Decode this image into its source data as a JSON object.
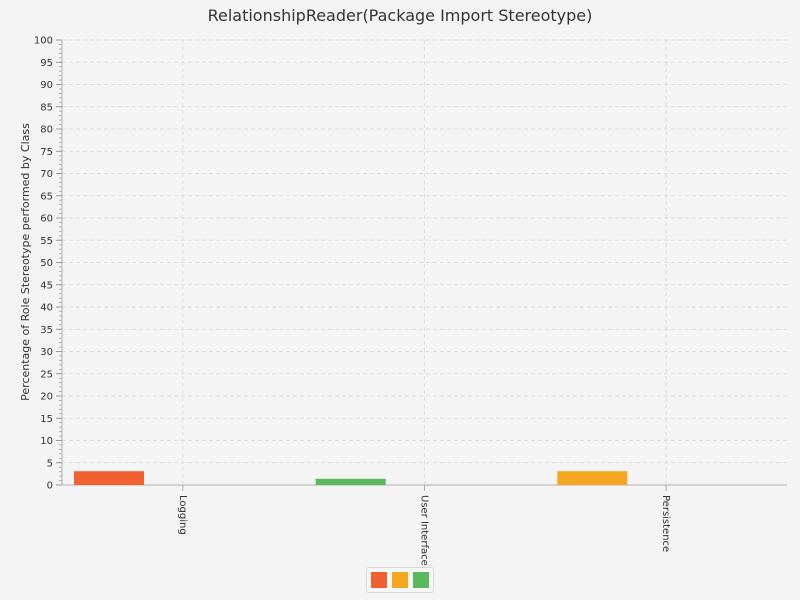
{
  "chart_data": {
    "type": "bar",
    "title": "RelationshipReader(Package Import Stereotype)",
    "xlabel": "",
    "ylabel": "Percentage of Role Stereotype performed by Class",
    "ylim": [
      0,
      100
    ],
    "y_ticks": [
      0,
      5,
      10,
      15,
      20,
      25,
      30,
      35,
      40,
      45,
      50,
      55,
      60,
      65,
      70,
      75,
      80,
      85,
      90,
      95,
      100
    ],
    "y_tick_labels": [
      "0",
      "5",
      "10",
      "15",
      "20",
      "25",
      "30",
      "35",
      "40",
      "45",
      "50",
      "55",
      "60",
      "65",
      "70",
      "75",
      "80",
      "85",
      "90",
      "95",
      "100"
    ],
    "categories": [
      "Logging",
      "User Interface",
      "Persistence"
    ],
    "values": [
      3.1,
      1.4,
      3.1
    ],
    "bar_colors": [
      "#f06030",
      "#5cb85c",
      "#f5a623"
    ],
    "grid": true,
    "legend_position": "bottom-center",
    "legend_colors": [
      "#f06030",
      "#f5a623",
      "#5cb85c"
    ]
  }
}
